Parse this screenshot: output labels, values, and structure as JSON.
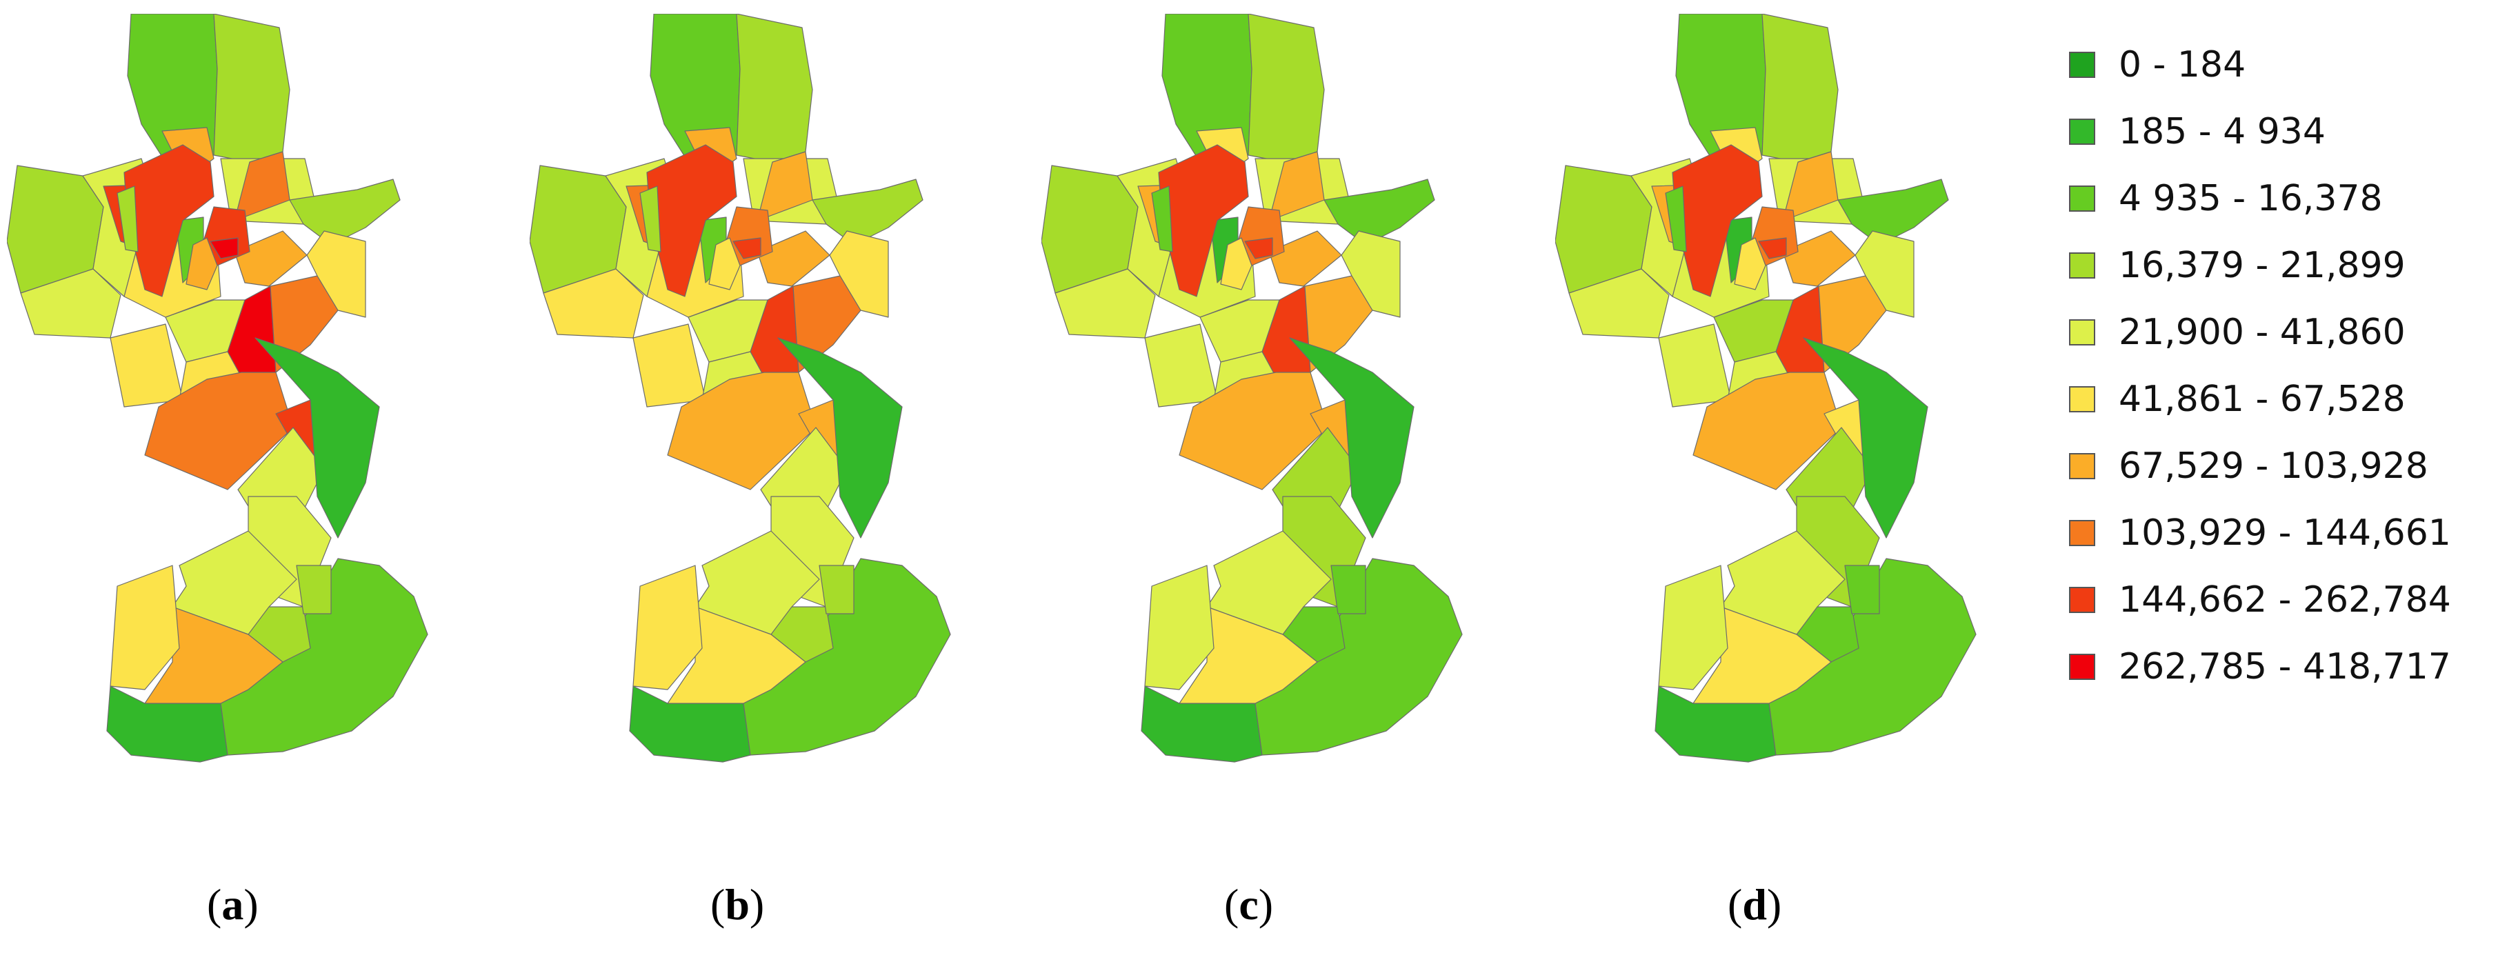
{
  "legend": {
    "classes": [
      {
        "label": "0 - 184",
        "color": "#1fa31f"
      },
      {
        "label": "185 - 4 934",
        "color": "#33b82a"
      },
      {
        "label": "4 935 - 16,378",
        "color": "#66cc22"
      },
      {
        "label": "16,379 - 21,899",
        "color": "#a6dc2a"
      },
      {
        "label": "21,900 - 41,860",
        "color": "#ddf04a"
      },
      {
        "label": "41,861 - 67,528",
        "color": "#fce34a"
      },
      {
        "label": "67,529 - 103,928",
        "color": "#fbad28"
      },
      {
        "label": "103,929 - 144,661",
        "color": "#f57a1e"
      },
      {
        "label": "144,662 - 262,784",
        "color": "#f03c12"
      },
      {
        "label": "262,785 - 418,717",
        "color": "#f0000b"
      }
    ]
  },
  "panels": [
    {
      "letter": "a",
      "classes": [
        2,
        3,
        3,
        4,
        5,
        4,
        4,
        3,
        8,
        7,
        6,
        6,
        2,
        8,
        8,
        9,
        5,
        4,
        9,
        6,
        7,
        5,
        5,
        7,
        8,
        3,
        4,
        4,
        1,
        1,
        2,
        3,
        4,
        6,
        5,
        3
      ]
    },
    {
      "letter": "b",
      "classes": [
        2,
        3,
        3,
        5,
        5,
        4,
        4,
        3,
        7,
        6,
        6,
        6,
        2,
        8,
        7,
        8,
        5,
        4,
        8,
        5,
        7,
        5,
        4,
        6,
        6,
        3,
        4,
        4,
        1,
        1,
        2,
        3,
        4,
        5,
        5,
        3
      ]
    },
    {
      "letter": "c",
      "classes": [
        2,
        3,
        3,
        4,
        4,
        4,
        4,
        2,
        6,
        6,
        5,
        6,
        1,
        8,
        7,
        8,
        4,
        4,
        8,
        5,
        6,
        4,
        4,
        6,
        6,
        2,
        3,
        3,
        1,
        1,
        2,
        2,
        4,
        5,
        4,
        2
      ]
    },
    {
      "letter": "d",
      "classes": [
        2,
        3,
        3,
        4,
        4,
        4,
        4,
        2,
        6,
        6,
        5,
        6,
        1,
        8,
        7,
        8,
        4,
        3,
        8,
        5,
        6,
        4,
        4,
        6,
        5,
        2,
        3,
        3,
        1,
        1,
        2,
        2,
        4,
        5,
        4,
        2
      ]
    }
  ],
  "caption_parens": [
    "(",
    ")"
  ]
}
